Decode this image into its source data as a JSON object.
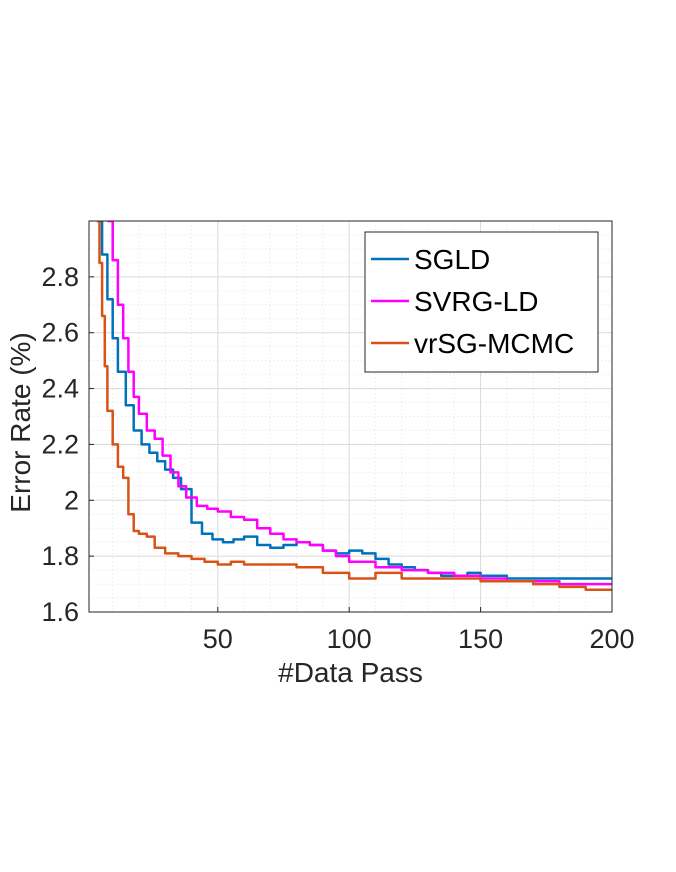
{
  "chart_data": {
    "type": "line",
    "xlabel": "#Data Pass",
    "ylabel": "Error Rate (%)",
    "xlim": [
      1,
      200
    ],
    "ylim": [
      1.6,
      3.0
    ],
    "xticks": [
      50,
      100,
      150,
      200
    ],
    "xtick_labels": [
      "50",
      "100",
      "150",
      "200"
    ],
    "yticks": [
      1.6,
      1.8,
      2.0,
      2.2,
      2.4,
      2.6,
      2.8
    ],
    "ytick_labels": [
      "1.6",
      "1.8",
      "2",
      "2.2",
      "2.4",
      "2.6",
      "2.8"
    ],
    "grid": true,
    "minor_grid": true,
    "legend_position": "top-right",
    "series": [
      {
        "name": "SGLD",
        "color": "#0072BD",
        "x": [
          4,
          6,
          8,
          10,
          12,
          15,
          18,
          21,
          24,
          27,
          30,
          33,
          36,
          40,
          44,
          48,
          52,
          56,
          60,
          65,
          70,
          75,
          80,
          85,
          90,
          95,
          100,
          105,
          110,
          115,
          120,
          125,
          130,
          135,
          140,
          145,
          150,
          155,
          160,
          165,
          170,
          180,
          190,
          200
        ],
        "y": [
          3.0,
          2.88,
          2.72,
          2.58,
          2.46,
          2.34,
          2.25,
          2.2,
          2.17,
          2.14,
          2.11,
          2.08,
          2.04,
          1.92,
          1.88,
          1.86,
          1.85,
          1.86,
          1.87,
          1.84,
          1.83,
          1.84,
          1.85,
          1.84,
          1.82,
          1.81,
          1.82,
          1.81,
          1.79,
          1.77,
          1.76,
          1.75,
          1.74,
          1.73,
          1.73,
          1.74,
          1.73,
          1.73,
          1.72,
          1.72,
          1.72,
          1.72,
          1.72,
          1.72
        ]
      },
      {
        "name": "SVRG-LD",
        "color": "#FF00FF",
        "x": [
          8,
          10,
          12,
          14,
          16,
          18,
          20,
          23,
          26,
          29,
          32,
          35,
          38,
          42,
          46,
          50,
          55,
          60,
          65,
          70,
          75,
          80,
          85,
          90,
          95,
          100,
          110,
          120,
          130,
          140,
          150,
          160,
          170,
          180,
          190,
          200
        ],
        "y": [
          3.0,
          2.86,
          2.7,
          2.58,
          2.46,
          2.37,
          2.31,
          2.25,
          2.22,
          2.16,
          2.1,
          2.05,
          2.01,
          1.98,
          1.97,
          1.96,
          1.94,
          1.93,
          1.9,
          1.88,
          1.86,
          1.85,
          1.84,
          1.82,
          1.8,
          1.78,
          1.76,
          1.75,
          1.74,
          1.73,
          1.72,
          1.71,
          1.71,
          1.7,
          1.7,
          1.7
        ]
      },
      {
        "name": "vrSG-MCMC",
        "color": "#D95319",
        "x": [
          4,
          5,
          6,
          7,
          8,
          10,
          12,
          14,
          16,
          18,
          20,
          23,
          26,
          30,
          35,
          40,
          45,
          50,
          55,
          60,
          70,
          80,
          90,
          100,
          110,
          120,
          130,
          140,
          150,
          160,
          170,
          180,
          190,
          200
        ],
        "y": [
          3.0,
          2.85,
          2.66,
          2.48,
          2.32,
          2.2,
          2.12,
          2.08,
          1.95,
          1.89,
          1.88,
          1.87,
          1.83,
          1.81,
          1.8,
          1.79,
          1.78,
          1.77,
          1.78,
          1.77,
          1.77,
          1.76,
          1.74,
          1.72,
          1.74,
          1.72,
          1.72,
          1.72,
          1.71,
          1.71,
          1.7,
          1.69,
          1.68,
          1.68
        ]
      }
    ]
  }
}
